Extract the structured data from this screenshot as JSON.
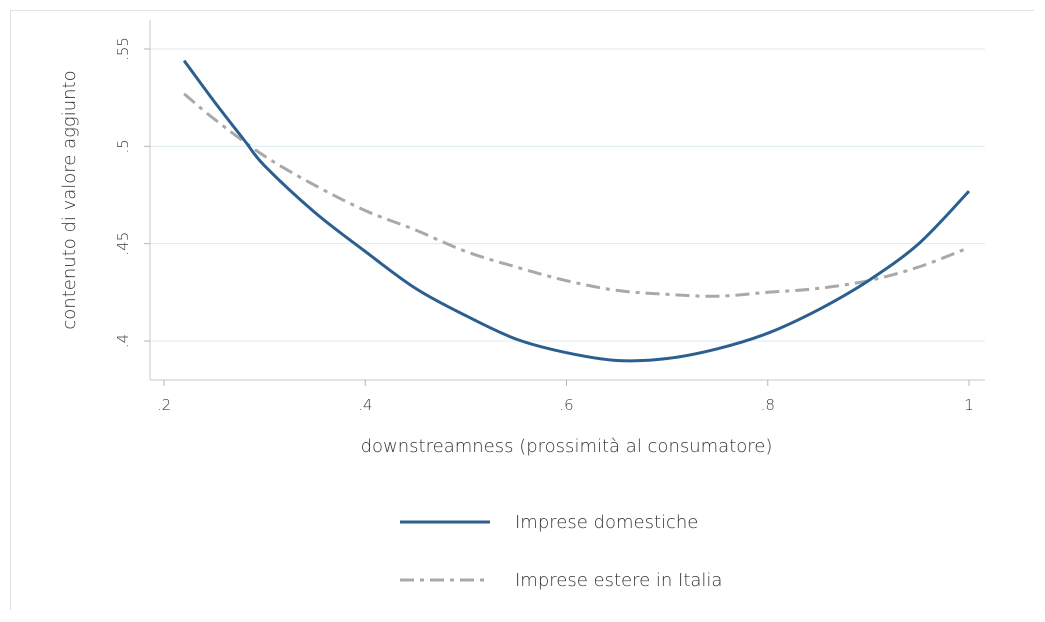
{
  "chart_data": {
    "type": "line",
    "xlabel": "downstreamness (prossimità al consumatore)",
    "ylabel": "contenuto di valore aggiunto",
    "xlim": [
      0.2,
      1.0
    ],
    "ylim": [
      0.39,
      0.555
    ],
    "x_ticks": [
      0.2,
      0.4,
      0.6,
      0.8,
      1.0
    ],
    "x_tick_labels": [
      ".2",
      ".4",
      ".6",
      ".8",
      "1"
    ],
    "y_ticks": [
      0.4,
      0.45,
      0.5,
      0.55
    ],
    "y_tick_labels": [
      ".4",
      ".45",
      ".5",
      ".55"
    ],
    "grid": true,
    "legend_position": "bottom",
    "series": [
      {
        "name": "Imprese domestiche",
        "color": "#2b5f8f",
        "style": "solid",
        "x": [
          0.22,
          0.25,
          0.28,
          0.3,
          0.35,
          0.4,
          0.45,
          0.5,
          0.55,
          0.6,
          0.65,
          0.7,
          0.75,
          0.8,
          0.85,
          0.9,
          0.95,
          1.0
        ],
        "y": [
          0.544,
          0.523,
          0.503,
          0.49,
          0.466,
          0.446,
          0.427,
          0.413,
          0.401,
          0.394,
          0.39,
          0.391,
          0.396,
          0.404,
          0.416,
          0.431,
          0.45,
          0.477
        ]
      },
      {
        "name": "Imprese estere in Italia",
        "color": "#a9a9a9",
        "style": "dashdot",
        "x": [
          0.22,
          0.25,
          0.3,
          0.35,
          0.4,
          0.45,
          0.5,
          0.55,
          0.6,
          0.65,
          0.7,
          0.75,
          0.8,
          0.85,
          0.9,
          0.95,
          1.0
        ],
        "y": [
          0.527,
          0.514,
          0.495,
          0.48,
          0.467,
          0.457,
          0.446,
          0.438,
          0.431,
          0.426,
          0.424,
          0.423,
          0.425,
          0.427,
          0.431,
          0.438,
          0.448
        ]
      }
    ]
  }
}
